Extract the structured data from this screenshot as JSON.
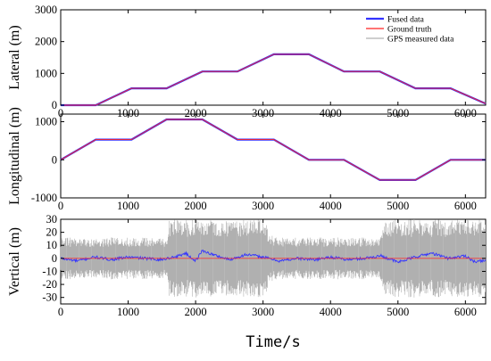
{
  "figure": {
    "xlabel": "Time/s"
  },
  "chart_data": [
    {
      "type": "line",
      "panel": "lateral",
      "ylabel": "Lateral (m)",
      "xlim": [
        0,
        6300
      ],
      "ylim": [
        0,
        3000
      ],
      "xticks": [
        0,
        1000,
        2000,
        3000,
        4000,
        5000,
        6000
      ],
      "yticks": [
        0,
        1000,
        2000,
        3000
      ],
      "grid": false,
      "legend": {
        "placement": "top-right",
        "entries": [
          {
            "name": "Fused data",
            "color": "#3333ff"
          },
          {
            "name": "Ground truth",
            "color": "#ff2222"
          },
          {
            "name": "GPS measured data",
            "color": "#b0b0b0"
          }
        ]
      },
      "series": [
        {
          "name": "Ground truth",
          "color": "#ff2222",
          "x": [
            0,
            520,
            1050,
            1570,
            2100,
            2620,
            3160,
            3680,
            4200,
            4730,
            5260,
            5780,
            6300
          ],
          "y": [
            0,
            0,
            530,
            530,
            1060,
            1060,
            1600,
            1600,
            1060,
            1060,
            530,
            530,
            50
          ]
        }
      ]
    },
    {
      "type": "line",
      "panel": "longitudinal",
      "ylabel": "Longitudinal (m)",
      "xlim": [
        0,
        6300
      ],
      "ylim": [
        -1000,
        1200
      ],
      "xticks": [
        0,
        1000,
        2000,
        3000,
        4000,
        5000,
        6000
      ],
      "yticks": [
        -1000,
        0,
        1000
      ],
      "grid": false,
      "series": [
        {
          "name": "Ground truth",
          "color": "#ff2222",
          "x": [
            0,
            520,
            1050,
            1570,
            2100,
            2620,
            3160,
            3680,
            4200,
            4730,
            5260,
            5780,
            6300
          ],
          "y": [
            0,
            530,
            530,
            1060,
            1060,
            530,
            530,
            0,
            0,
            -530,
            -530,
            0,
            0
          ]
        }
      ]
    },
    {
      "type": "line",
      "panel": "vertical",
      "ylabel": "Vertical (m)",
      "xlim": [
        0,
        6300
      ],
      "ylim": [
        -35,
        30
      ],
      "xticks": [
        0,
        1000,
        2000,
        3000,
        4000,
        5000,
        6000
      ],
      "yticks": [
        -30,
        -20,
        -10,
        0,
        10,
        20,
        30
      ],
      "grid": false,
      "series": [
        {
          "name": "GPS measured data",
          "color": "#b0b0b0",
          "x": [
            0,
            500,
            1000,
            1570,
            1600,
            2000,
            2500,
            3000,
            3150,
            3500,
            4000,
            4500,
            4730,
            4800,
            5500,
            6000,
            6300
          ],
          "y_half_range": [
            16,
            16,
            16,
            16,
            30,
            30,
            30,
            30,
            16,
            16,
            16,
            16,
            16,
            30,
            30,
            30,
            30
          ]
        },
        {
          "name": "Fused data",
          "color": "#3333ff",
          "x": [
            0,
            250,
            500,
            750,
            1000,
            1250,
            1500,
            1750,
            1850,
            2000,
            2100,
            2250,
            2500,
            2750,
            3000,
            3250,
            3500,
            3750,
            4000,
            4250,
            4500,
            4750,
            5000,
            5250,
            5500,
            5750,
            6000,
            6150,
            6300
          ],
          "y": [
            0,
            -2,
            1,
            -1,
            1,
            0,
            -1,
            2,
            4,
            -2,
            6,
            3,
            -1,
            3,
            1,
            -2,
            0,
            -1,
            1,
            -1,
            0,
            2,
            -3,
            1,
            4,
            0,
            2,
            -3,
            -1
          ]
        }
      ]
    }
  ]
}
